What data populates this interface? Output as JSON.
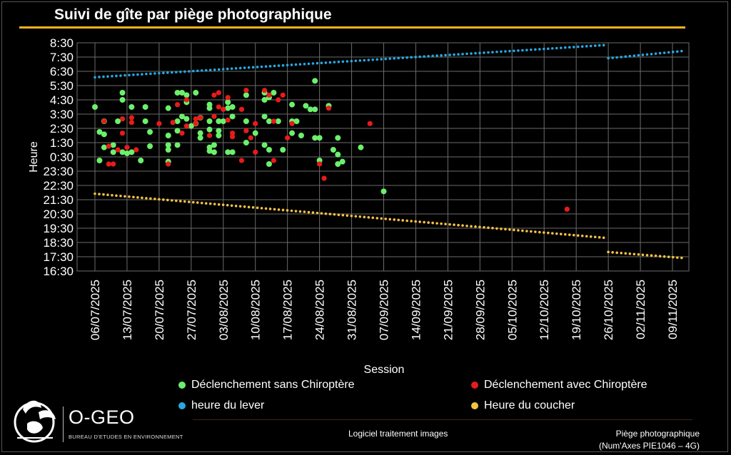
{
  "title": "Suivi de gîte par piège photographique",
  "colors": {
    "accent": "#f5b21f",
    "green": "#6cf06c",
    "red": "#e81b1b",
    "blue": "#27a8e0",
    "yellow": "#f5c242"
  },
  "legend": {
    "sans": "Déclenchement sans Chiroptère",
    "avec": "Déclenchement avec Chiroptère",
    "lever": "heure du lever",
    "coucher": "Heure du coucher"
  },
  "footer": {
    "brand": "O-GEO",
    "tagline": "BUREAU D'ETUDES EN ENVIRONNEMENT",
    "software": "Logiciel traitement images",
    "device_line1": "Piège photographique",
    "device_line2": "(Num'Axes PIE1046 – 4G)"
  },
  "chart_data": {
    "type": "scatter",
    "xlabel": "Session",
    "ylabel": "Heure",
    "x_ticks": [
      "06/07/2025",
      "13/07/2025",
      "20/07/2025",
      "27/07/2025",
      "03/08/2025",
      "10/08/2025",
      "17/08/2025",
      "24/08/2025",
      "31/08/2025",
      "07/09/2025",
      "14/09/2025",
      "21/09/2025",
      "28/09/2025",
      "05/10/2025",
      "12/10/2025",
      "19/10/2025",
      "26/10/2025",
      "02/11/2025",
      "09/11/2025"
    ],
    "y_ticks": [
      "16:30",
      "17:30",
      "18:30",
      "19:30",
      "20:30",
      "21:30",
      "22:30",
      "23:30",
      "0:30",
      "1:30",
      "2:30",
      "3:30",
      "4:30",
      "5:30",
      "6:30",
      "7:30",
      "8:30"
    ],
    "y_range": [
      "16:30",
      "8:30"
    ],
    "grid": true,
    "legend_position": "bottom",
    "series": [
      {
        "name": "Déclenchement sans Chiroptère",
        "points": [
          [
            "06/07/2025",
            "4:00"
          ],
          [
            "07/07/2025",
            "0:15"
          ],
          [
            "07/07/2025",
            "2:15"
          ],
          [
            "08/07/2025",
            "2:05"
          ],
          [
            "08/07/2025",
            "1:10"
          ],
          [
            "08/07/2025",
            "3:00"
          ],
          [
            "10/07/2025",
            "0:50"
          ],
          [
            "10/07/2025",
            "1:20"
          ],
          [
            "11/07/2025",
            "3:00"
          ],
          [
            "12/07/2025",
            "5:00"
          ],
          [
            "12/07/2025",
            "4:30"
          ],
          [
            "12/07/2025",
            "0:50"
          ],
          [
            "13/07/2025",
            "0:45"
          ],
          [
            "14/07/2025",
            "0:50"
          ],
          [
            "14/07/2025",
            "4:00"
          ],
          [
            "16/07/2025",
            "0:15"
          ],
          [
            "17/07/2025",
            "4:00"
          ],
          [
            "17/07/2025",
            "3:00"
          ],
          [
            "18/07/2025",
            "2:15"
          ],
          [
            "18/07/2025",
            "1:15"
          ],
          [
            "22/07/2025",
            "0:10"
          ],
          [
            "22/07/2025",
            "0:10"
          ],
          [
            "22/07/2025",
            "3:55"
          ],
          [
            "22/07/2025",
            "2:00"
          ],
          [
            "22/07/2025",
            "1:20"
          ],
          [
            "22/07/2025",
            "1:00"
          ],
          [
            "24/07/2025",
            "5:00"
          ],
          [
            "24/07/2025",
            "3:00"
          ],
          [
            "24/07/2025",
            "1:20"
          ],
          [
            "24/07/2025",
            "2:20"
          ],
          [
            "25/07/2025",
            "5:00"
          ],
          [
            "25/07/2025",
            "3:20"
          ],
          [
            "26/07/2025",
            "4:50"
          ],
          [
            "26/07/2025",
            "4:20"
          ],
          [
            "26/07/2025",
            "3:10"
          ],
          [
            "27/07/2025",
            "2:40"
          ],
          [
            "28/07/2025",
            "5:00"
          ],
          [
            "28/07/2025",
            "2:50"
          ],
          [
            "29/07/2025",
            "3:15"
          ],
          [
            "29/07/2025",
            "2:10"
          ],
          [
            "29/07/2025",
            "1:50"
          ],
          [
            "31/07/2025",
            "3:00"
          ],
          [
            "31/07/2025",
            "4:10"
          ],
          [
            "31/07/2025",
            "3:55"
          ],
          [
            "31/07/2025",
            "2:25"
          ],
          [
            "31/07/2025",
            "1:10"
          ],
          [
            "31/07/2025",
            "0:55"
          ],
          [
            "01/08/2025",
            "1:20"
          ],
          [
            "01/08/2025",
            "0:50"
          ],
          [
            "02/08/2025",
            "3:00"
          ],
          [
            "02/08/2025",
            "2:20"
          ],
          [
            "02/08/2025",
            "2:00"
          ],
          [
            "03/08/2025",
            "3:00"
          ],
          [
            "04/08/2025",
            "4:20"
          ],
          [
            "04/08/2025",
            "3:55"
          ],
          [
            "04/08/2025",
            "0:50"
          ],
          [
            "05/08/2025",
            "4:00"
          ],
          [
            "05/08/2025",
            "3:20"
          ],
          [
            "05/08/2025",
            "0:50"
          ],
          [
            "08/08/2025",
            "4:50"
          ],
          [
            "08/08/2025",
            "3:00"
          ],
          [
            "08/08/2025",
            "1:30"
          ],
          [
            "10/08/2025",
            "2:10"
          ],
          [
            "12/08/2025",
            "5:00"
          ],
          [
            "12/08/2025",
            "4:30"
          ],
          [
            "12/08/2025",
            "3:20"
          ],
          [
            "12/08/2025",
            "1:20"
          ],
          [
            "13/08/2025",
            "1:00"
          ],
          [
            "13/08/2025",
            "3:00"
          ],
          [
            "13/08/2025",
            "4:40"
          ],
          [
            "13/08/2025",
            "0:00"
          ],
          [
            "14/08/2025",
            "5:00"
          ],
          [
            "15/08/2025",
            "3:00"
          ],
          [
            "16/08/2025",
            "1:00"
          ],
          [
            "18/08/2025",
            "4:10"
          ],
          [
            "18/08/2025",
            "3:00"
          ],
          [
            "18/08/2025",
            "2:10"
          ],
          [
            "19/08/2025",
            "3:00"
          ],
          [
            "20/08/2025",
            "2:00"
          ],
          [
            "21/08/2025",
            "4:05"
          ],
          [
            "22/08/2025",
            "3:50"
          ],
          [
            "23/08/2025",
            "5:50"
          ],
          [
            "23/08/2025",
            "3:50"
          ],
          [
            "23/08/2025",
            "1:50"
          ],
          [
            "24/08/2025",
            "1:50"
          ],
          [
            "24/08/2025",
            "0:15"
          ],
          [
            "26/08/2025",
            "4:05"
          ],
          [
            "27/08/2025",
            "1:00"
          ],
          [
            "28/08/2025",
            "0:40"
          ],
          [
            "28/08/2025",
            "1:50"
          ],
          [
            "28/08/2025",
            "0:00"
          ],
          [
            "29/08/2025",
            "0:10"
          ],
          [
            "02/09/2025",
            "1:10"
          ],
          [
            "07/09/2025",
            "22:05"
          ]
        ]
      },
      {
        "name": "Déclenchement avec Chiroptère",
        "points": [
          [
            "08/07/2025",
            "3:00"
          ],
          [
            "09/07/2025",
            "1:15"
          ],
          [
            "09/07/2025",
            "0:00"
          ],
          [
            "10/07/2025",
            "0:00"
          ],
          [
            "11/07/2025",
            "1:00"
          ],
          [
            "12/07/2025",
            "3:10"
          ],
          [
            "12/07/2025",
            "2:10"
          ],
          [
            "13/07/2025",
            "1:10"
          ],
          [
            "14/07/2025",
            "3:15"
          ],
          [
            "14/07/2025",
            "2:55"
          ],
          [
            "15/07/2025",
            "1:00"
          ],
          [
            "20/07/2025",
            "2:50"
          ],
          [
            "22/07/2025",
            "0:00"
          ],
          [
            "23/07/2025",
            "2:55"
          ],
          [
            "24/07/2025",
            "4:10"
          ],
          [
            "25/07/2025",
            "2:10"
          ],
          [
            "26/07/2025",
            "4:30"
          ],
          [
            "26/07/2025",
            "2:40"
          ],
          [
            "28/07/2025",
            "2:50"
          ],
          [
            "28/07/2025",
            "3:10"
          ],
          [
            "29/07/2025",
            "3:15"
          ],
          [
            "31/07/2025",
            "2:00"
          ],
          [
            "01/08/2025",
            "4:50"
          ],
          [
            "01/08/2025",
            "3:20"
          ],
          [
            "02/08/2025",
            "5:00"
          ],
          [
            "02/08/2025",
            "4:00"
          ],
          [
            "03/08/2025",
            "3:50"
          ],
          [
            "04/08/2025",
            "4:40"
          ],
          [
            "04/08/2025",
            "3:05"
          ],
          [
            "05/08/2025",
            "2:10"
          ],
          [
            "05/08/2025",
            "1:55"
          ],
          [
            "07/08/2025",
            "3:50"
          ],
          [
            "07/08/2025",
            "0:15"
          ],
          [
            "08/08/2025",
            "5:10"
          ],
          [
            "08/08/2025",
            "2:20"
          ],
          [
            "09/08/2025",
            "1:50"
          ],
          [
            "10/08/2025",
            "0:50"
          ],
          [
            "10/08/2025",
            "2:50"
          ],
          [
            "12/08/2025",
            "5:10"
          ],
          [
            "13/08/2025",
            "4:50"
          ],
          [
            "14/08/2025",
            "3:00"
          ],
          [
            "14/08/2025",
            "0:15"
          ],
          [
            "15/08/2025",
            "4:30"
          ],
          [
            "16/08/2025",
            "4:50"
          ],
          [
            "17/08/2025",
            "1:50"
          ],
          [
            "18/08/2025",
            "2:50"
          ],
          [
            "24/08/2025",
            "0:00"
          ],
          [
            "25/08/2025",
            "23:00"
          ],
          [
            "26/08/2025",
            "3:55"
          ],
          [
            "04/09/2025",
            "2:50"
          ],
          [
            "17/10/2025",
            "20:50"
          ]
        ]
      },
      {
        "name": "heure du lever",
        "segments": [
          [
            [
              "06/07/2025",
              "6:05"
            ],
            [
              "25/10/2025",
              "8:20"
            ]
          ],
          [
            [
              "26/10/2025",
              "7:25"
            ],
            [
              "11/11/2025",
              "7:55"
            ]
          ]
        ]
      },
      {
        "name": "Heure du coucher",
        "segments": [
          [
            [
              "06/07/2025",
              "21:55"
            ],
            [
              "25/10/2025",
              "18:50"
            ]
          ],
          [
            [
              "26/10/2025",
              "17:50"
            ],
            [
              "11/11/2025",
              "17:25"
            ]
          ]
        ]
      }
    ]
  }
}
